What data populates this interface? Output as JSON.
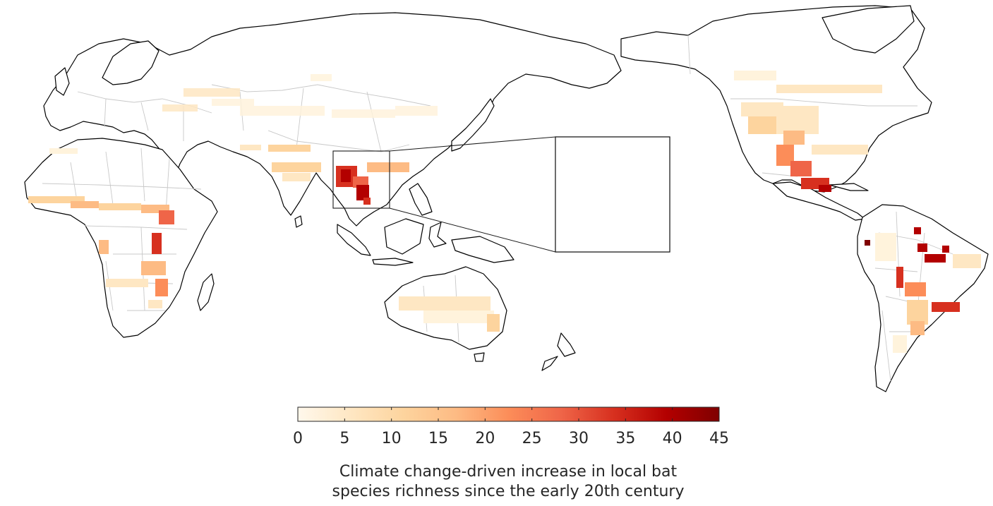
{
  "colorbar": {
    "min": 0,
    "max": 45,
    "ticks": [
      "0",
      "5",
      "10",
      "15",
      "20",
      "25",
      "30",
      "35",
      "40",
      "45"
    ],
    "colors": [
      "#fff8ec",
      "#fee7c3",
      "#fdd49e",
      "#fdbb84",
      "#fc8d59",
      "#ef6548",
      "#d7301f",
      "#b30000",
      "#7f0000"
    ],
    "label_line1": "Climate change-driven increase in local bat",
    "label_line2": "species richness since the early 20th century"
  },
  "colors": {
    "coastline": "#000000",
    "border": "#c8c8c8",
    "background": "#ffffff"
  }
}
